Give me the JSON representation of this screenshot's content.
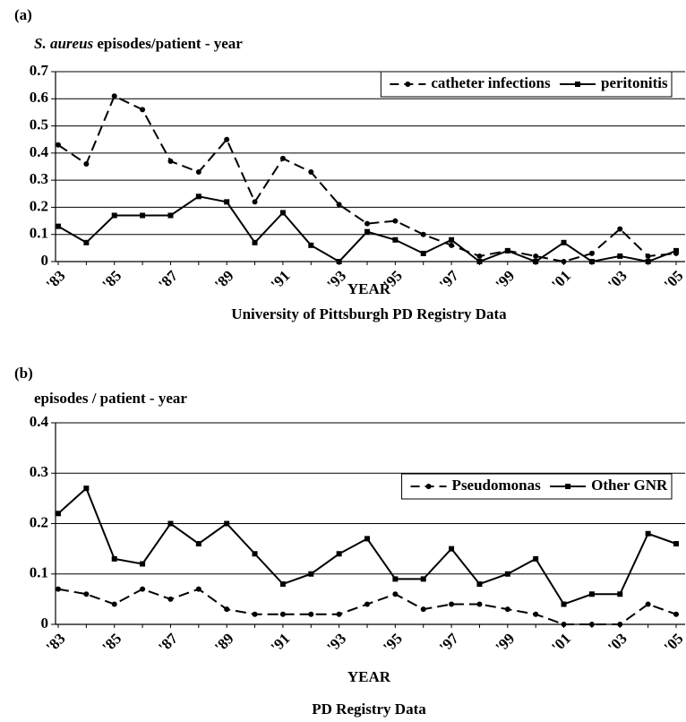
{
  "chart_data": [
    {
      "type": "line",
      "panel_label": "(a)",
      "y_label_italic": "S. aureus",
      "y_label": "episodes/patient - year",
      "x_label": "YEAR",
      "caption": "University of Pittsburgh PD Registry Data",
      "categories": [
        "'83",
        null,
        "'85",
        null,
        "'87",
        null,
        "'89",
        null,
        "'91",
        null,
        "'93",
        null,
        "'95",
        null,
        "'97",
        null,
        "'99",
        null,
        "'01",
        null,
        "'03",
        null,
        "'05"
      ],
      "series": [
        {
          "name": "catheter infections",
          "color": "#000000",
          "dash": true,
          "marker": "circle",
          "values": [
            0.43,
            0.36,
            0.61,
            0.56,
            0.37,
            0.33,
            0.45,
            0.22,
            0.38,
            0.33,
            0.21,
            0.14,
            0.15,
            0.1,
            0.06,
            0.02,
            0.04,
            0.02,
            0.0,
            0.03,
            0.12,
            0.02,
            0.03
          ]
        },
        {
          "name": "peritonitis",
          "color": "#000000",
          "dash": false,
          "marker": "square",
          "values": [
            0.13,
            0.07,
            0.17,
            0.17,
            0.17,
            0.24,
            0.22,
            0.07,
            0.18,
            0.06,
            0.0,
            0.11,
            0.08,
            0.03,
            0.08,
            0.0,
            0.04,
            0.0,
            0.07,
            0.0,
            0.02,
            0.0,
            0.04
          ]
        }
      ],
      "ylim": [
        0,
        0.7
      ],
      "yticks": [
        0,
        0.1,
        0.2,
        0.3,
        0.4,
        0.5,
        0.6,
        0.7
      ],
      "grid": true,
      "legend": "top-right"
    },
    {
      "type": "line",
      "panel_label": "(b)",
      "y_label": "episodes / patient - year",
      "x_label": "YEAR",
      "caption": "PD Registry Data",
      "categories": [
        "'83",
        null,
        "'85",
        null,
        "'87",
        null,
        "'89",
        null,
        "'91",
        null,
        "'93",
        null,
        "'95",
        null,
        "'97",
        null,
        "'99",
        null,
        "'01",
        null,
        "'03",
        null,
        "'05"
      ],
      "series": [
        {
          "name": "Pseudomonas",
          "color": "#000000",
          "dash": true,
          "marker": "circle",
          "values": [
            0.07,
            0.06,
            0.04,
            0.07,
            0.05,
            0.07,
            0.03,
            0.02,
            0.02,
            0.02,
            0.02,
            0.04,
            0.06,
            0.03,
            0.04,
            0.04,
            0.03,
            0.02,
            0.0,
            0.0,
            0.0,
            0.04,
            0.02
          ]
        },
        {
          "name": "Other GNR",
          "color": "#000000",
          "dash": false,
          "marker": "square",
          "values": [
            0.22,
            0.27,
            0.13,
            0.12,
            0.2,
            0.16,
            0.2,
            0.14,
            0.08,
            0.1,
            0.14,
            0.17,
            0.09,
            0.09,
            0.15,
            0.08,
            0.1,
            0.13,
            0.04,
            0.06,
            0.06,
            0.18,
            0.16
          ]
        }
      ],
      "ylim": [
        0,
        0.4
      ],
      "yticks": [
        0,
        0.1,
        0.2,
        0.3,
        0.4
      ],
      "grid": true,
      "legend": "top-right"
    }
  ]
}
